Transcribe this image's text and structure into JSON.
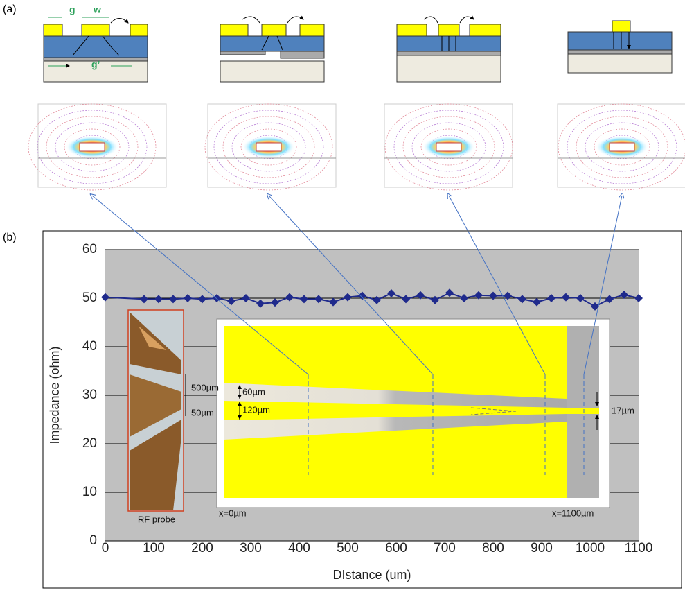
{
  "labels": {
    "panel_a": "(a)",
    "panel_b": "(b)"
  },
  "cross_section": {
    "g": "g",
    "w": "w",
    "g_prime": "g’"
  },
  "inset": {
    "probe": "RF probe",
    "gap_500": "500µm",
    "gap_60": "60µm",
    "width_50": "50µm",
    "width_120": "120µm",
    "width_17": "17µm",
    "start": "x=0µm",
    "end": "x=1100µm"
  },
  "chart_data": {
    "type": "line",
    "x_label": "DIstance (um)",
    "y_label": "Impedance (ohm)",
    "x": [
      0,
      80,
      110,
      140,
      170,
      200,
      230,
      260,
      290,
      320,
      350,
      380,
      410,
      440,
      470,
      500,
      530,
      560,
      590,
      620,
      650,
      680,
      710,
      740,
      770,
      800,
      830,
      860,
      890,
      920,
      950,
      980,
      1010,
      1040,
      1070,
      1100
    ],
    "series": [
      {
        "name": "Impedance",
        "color": "#1f2a8c",
        "values": [
          50.2,
          49.8,
          49.8,
          49.8,
          50,
          49.8,
          50,
          49.4,
          50,
          48.9,
          49.1,
          50.2,
          49.8,
          49.8,
          49.2,
          50.2,
          50.5,
          49.6,
          51,
          49.8,
          50.6,
          49.6,
          51.1,
          50,
          50.6,
          50.5,
          50.5,
          49.8,
          49.2,
          50,
          50.2,
          50,
          48.3,
          49.8,
          50.7,
          50
        ]
      }
    ],
    "xlim": [
      0,
      1100
    ],
    "ylim": [
      0,
      60
    ],
    "xticks": [
      0,
      100,
      200,
      300,
      400,
      500,
      600,
      700,
      800,
      900,
      1000,
      1100
    ],
    "yticks": [
      0,
      10,
      20,
      30,
      40,
      50,
      60
    ],
    "grid": true
  }
}
